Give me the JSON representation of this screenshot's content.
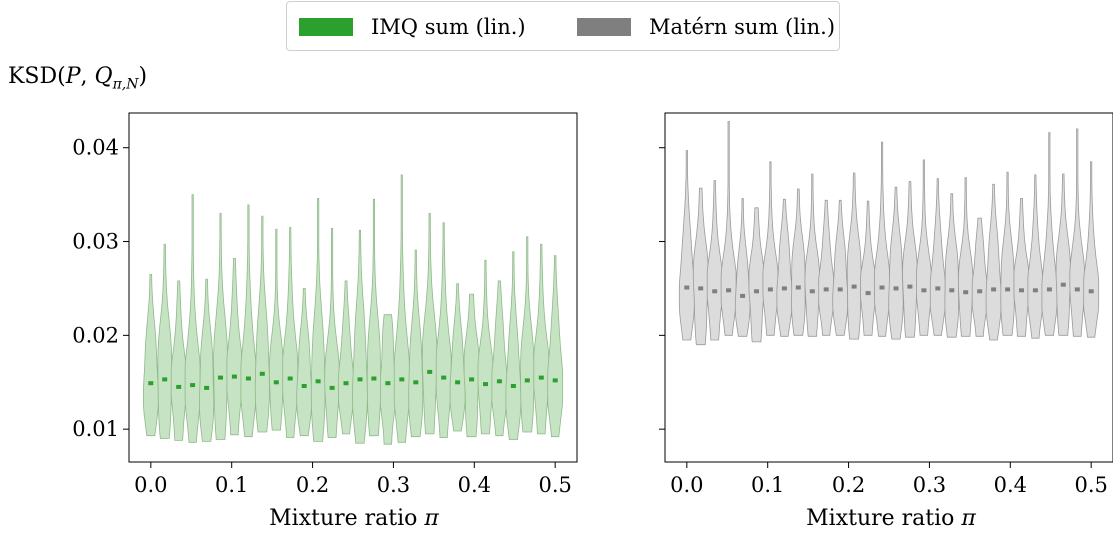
{
  "legend": {
    "items": [
      {
        "label": "IMQ sum (lin.)",
        "color": "#2ca02c"
      },
      {
        "label": "Matérn sum (lin.)",
        "color": "#7f7f7f"
      }
    ]
  },
  "ylabel": {
    "text": "KSD(",
    "p": "P",
    "sep": ", ",
    "q": "Q",
    "sub": "π,N",
    "close": ")"
  },
  "xlabel": {
    "text": "Mixture ratio ",
    "sym": "π"
  },
  "chart_data": [
    {
      "type": "violin",
      "panel": "left",
      "series_name": "IMQ sum (lin.)",
      "fill_color": "#c6e3c3",
      "edge_color": "#8fb98a",
      "median_color": "#2ca02c",
      "x": [
        0.0,
        0.0172,
        0.0345,
        0.0517,
        0.069,
        0.0862,
        0.1034,
        0.1207,
        0.1379,
        0.1552,
        0.1724,
        0.1897,
        0.2069,
        0.2241,
        0.2414,
        0.2586,
        0.2759,
        0.2931,
        0.3103,
        0.3276,
        0.3448,
        0.3621,
        0.3793,
        0.3966,
        0.4138,
        0.431,
        0.4483,
        0.4655,
        0.4828,
        0.5
      ],
      "median": [
        0.0149,
        0.0153,
        0.0145,
        0.0147,
        0.0144,
        0.0155,
        0.0156,
        0.0154,
        0.0159,
        0.015,
        0.0154,
        0.0146,
        0.0151,
        0.0144,
        0.0149,
        0.0153,
        0.0154,
        0.0149,
        0.0153,
        0.015,
        0.0161,
        0.0155,
        0.015,
        0.0153,
        0.0148,
        0.0151,
        0.0146,
        0.0152,
        0.0155,
        0.0152
      ],
      "min": [
        0.0093,
        0.009,
        0.0088,
        0.0086,
        0.0087,
        0.0089,
        0.0094,
        0.0092,
        0.0097,
        0.0099,
        0.0091,
        0.0093,
        0.0087,
        0.0091,
        0.0095,
        0.0085,
        0.0093,
        0.0084,
        0.0086,
        0.0092,
        0.0095,
        0.0091,
        0.0098,
        0.0092,
        0.0095,
        0.0093,
        0.0089,
        0.0097,
        0.0095,
        0.0092
      ],
      "max": [
        0.0265,
        0.0297,
        0.0258,
        0.035,
        0.026,
        0.033,
        0.0282,
        0.0339,
        0.0327,
        0.0313,
        0.0315,
        0.025,
        0.0346,
        0.0314,
        0.0258,
        0.0312,
        0.0345,
        0.0222,
        0.0371,
        0.0291,
        0.033,
        0.032,
        0.0255,
        0.0244,
        0.028,
        0.0258,
        0.0289,
        0.0305,
        0.0297,
        0.0285
      ],
      "xticks": [
        0.0,
        0.1,
        0.2,
        0.3,
        0.4,
        0.5
      ],
      "xtick_labels": [
        "0.0",
        "0.1",
        "0.2",
        "0.3",
        "0.4",
        "0.5"
      ],
      "yticks": [
        0.01,
        0.02,
        0.03,
        0.04
      ],
      "ytick_labels": [
        "0.01",
        "0.02",
        "0.03",
        "0.04"
      ],
      "xlim": [
        -0.027,
        0.527
      ],
      "ylim": [
        0.0065,
        0.0437
      ]
    },
    {
      "type": "violin",
      "panel": "right",
      "series_name": "Matérn sum (lin.)",
      "fill_color": "#dcdcdc",
      "edge_color": "#9a9a9a",
      "median_color": "#7f7f7f",
      "x": [
        0.0,
        0.0172,
        0.0345,
        0.0517,
        0.069,
        0.0862,
        0.1034,
        0.1207,
        0.1379,
        0.1552,
        0.1724,
        0.1897,
        0.2069,
        0.2241,
        0.2414,
        0.2586,
        0.2759,
        0.2931,
        0.3103,
        0.3276,
        0.3448,
        0.3621,
        0.3793,
        0.3966,
        0.4138,
        0.431,
        0.4483,
        0.4655,
        0.4828,
        0.5
      ],
      "median": [
        0.0251,
        0.025,
        0.0247,
        0.0248,
        0.0242,
        0.0247,
        0.0249,
        0.025,
        0.0251,
        0.0247,
        0.0249,
        0.0249,
        0.0252,
        0.0245,
        0.0251,
        0.025,
        0.0252,
        0.0248,
        0.025,
        0.0248,
        0.0246,
        0.0247,
        0.0249,
        0.0249,
        0.0248,
        0.0248,
        0.0249,
        0.0254,
        0.0249,
        0.0247
      ],
      "min": [
        0.0195,
        0.019,
        0.0195,
        0.02,
        0.0199,
        0.0193,
        0.02,
        0.0199,
        0.02,
        0.0199,
        0.02,
        0.02,
        0.0196,
        0.02,
        0.0199,
        0.0196,
        0.0198,
        0.02,
        0.02,
        0.0198,
        0.0199,
        0.0199,
        0.0195,
        0.02,
        0.0199,
        0.0197,
        0.02,
        0.02,
        0.0199,
        0.0198
      ],
      "max": [
        0.0397,
        0.0357,
        0.0365,
        0.0428,
        0.0346,
        0.0336,
        0.0385,
        0.0345,
        0.0356,
        0.0372,
        0.0344,
        0.0344,
        0.0373,
        0.0343,
        0.0406,
        0.0358,
        0.0364,
        0.0387,
        0.0367,
        0.0351,
        0.0368,
        0.0325,
        0.0361,
        0.0374,
        0.0346,
        0.0371,
        0.0416,
        0.0372,
        0.042,
        0.0385
      ],
      "xticks": [
        0.0,
        0.1,
        0.2,
        0.3,
        0.4,
        0.5
      ],
      "xtick_labels": [
        "0.0",
        "0.1",
        "0.2",
        "0.3",
        "0.4",
        "0.5"
      ],
      "yticks": [
        0.01,
        0.02,
        0.03,
        0.04
      ],
      "ytick_labels": [],
      "xlim": [
        -0.027,
        0.527
      ],
      "ylim": [
        0.0065,
        0.0437
      ]
    }
  ]
}
